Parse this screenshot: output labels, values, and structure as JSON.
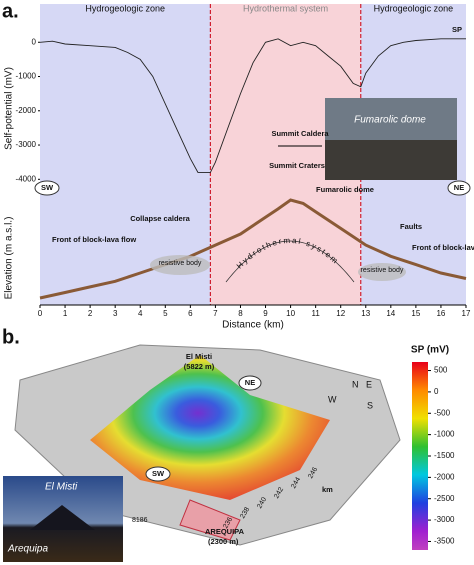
{
  "chart_data": [
    {
      "type": "line",
      "y_label": "Self-potential (mV)",
      "series": [
        {
          "name": "SP",
          "color": "#222222",
          "x": [
            0,
            0.5,
            1,
            2,
            3,
            3.5,
            4,
            4.5,
            5,
            5.5,
            6,
            6.3,
            6.8,
            7,
            7.5,
            8,
            8.5,
            9,
            9.5,
            10,
            10.5,
            11,
            11.5,
            12,
            12.5,
            12.8,
            13,
            13.5,
            14,
            14.5,
            15,
            16,
            17
          ],
          "values": [
            0,
            30,
            -50,
            -100,
            -150,
            -300,
            -500,
            -1000,
            -1800,
            -2600,
            -3400,
            -3800,
            -3800,
            -3500,
            -2500,
            -1500,
            -600,
            0,
            100,
            -100,
            0,
            -100,
            -400,
            -700,
            -1200,
            -1300,
            -900,
            -400,
            -100,
            0,
            50,
            100,
            100
          ]
        }
      ],
      "xlim": [
        0,
        17
      ],
      "ylim": [
        -4400,
        1000
      ],
      "yticks": [
        0,
        -1000,
        -2000,
        -3000,
        -4000
      ],
      "bands": [
        {
          "label": "Hydrogeologic zone",
          "xmin": 0,
          "xmax": 6.8,
          "color": "#d6d8f5"
        },
        {
          "label": "Hydrothermal system",
          "xmin": 6.8,
          "xmax": 12.8,
          "color": "#f8d3d8"
        },
        {
          "label": "Hydrogeologic zone",
          "xmin": 12.8,
          "xmax": 17,
          "color": "#d6d8f5"
        }
      ]
    },
    {
      "type": "line",
      "y_label": "Elevation (m a.s.l.)",
      "x_label": "Distance (km)",
      "series": [
        {
          "name": "Elevation",
          "color": "#8a5a36",
          "x": [
            0,
            1,
            2,
            3,
            4,
            5,
            6,
            7,
            8,
            9,
            9.5,
            10,
            10.5,
            11,
            12,
            13,
            14,
            15,
            16,
            17
          ],
          "values": [
            2300,
            2500,
            2700,
            2900,
            3200,
            3500,
            3800,
            4200,
            4600,
            5200,
            5500,
            5822,
            5700,
            5400,
            4800,
            4200,
            3800,
            3500,
            3200,
            3000
          ]
        }
      ],
      "xlim": [
        0,
        17
      ],
      "ylim": [
        2050,
        6000
      ],
      "xticks": [
        0,
        1,
        2,
        3,
        4,
        5,
        6,
        7,
        8,
        9,
        10,
        11,
        12,
        13,
        14,
        15,
        16,
        17
      ]
    }
  ],
  "panel_a": {
    "label": "a.",
    "sp": "SP",
    "sw": "SW",
    "ne": "NE",
    "summit_caldera": "Summit Caldera",
    "summit_craters": "Summit Craters",
    "fumarolic_dome": "Fumarolic dome",
    "photo_label": "Fumarolic dome",
    "collapse_caldera": "Collapse caldera",
    "front_left": "Front of block-lava flow",
    "front_right": "Front of block-lava flow",
    "resistive_left": "resistive body",
    "resistive_right": "resistive body",
    "faults": "Faults",
    "hydrothermal": "Hydrothermal system"
  },
  "panel_b": {
    "label": "b.",
    "summit": "El Misti",
    "summit_elev": "(5822 m)",
    "ne": "NE",
    "sw": "SW",
    "city": "AREQUIPA",
    "city_elev": "(2300 m)",
    "km": "km",
    "compass": [
      "N",
      "E",
      "W",
      "S"
    ],
    "easting": [
      "236",
      "238",
      "240",
      "242",
      "244",
      "246"
    ],
    "northing": "8186",
    "photo_title": "El Misti",
    "photo_city": "Arequipa",
    "colorbar": {
      "title": "SP (mV)",
      "lim": [
        700,
        -3700
      ],
      "ticks": [
        500,
        0,
        -500,
        -1000,
        -1500,
        -2000,
        -2500,
        -3000,
        -3500
      ]
    }
  }
}
